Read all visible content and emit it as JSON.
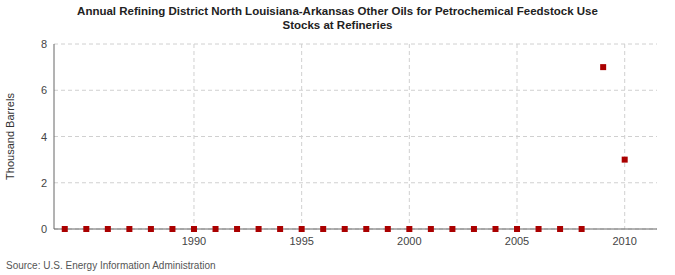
{
  "chart_data": {
    "type": "scatter",
    "title": "Annual Refining District North Louisiana-Arkansas Other Oils for Petrochemical Feedstock Use\nStocks at Refineries",
    "ylabel": "Thousand Barrels",
    "annotations": [
      "Source: U.S. Energy Information Administration"
    ],
    "x": [
      1984,
      1985,
      1986,
      1987,
      1988,
      1989,
      1990,
      1991,
      1992,
      1993,
      1994,
      1995,
      1996,
      1997,
      1998,
      1999,
      2000,
      2001,
      2002,
      2003,
      2004,
      2005,
      2006,
      2007,
      2008,
      2009,
      2010
    ],
    "values": [
      0,
      0,
      0,
      0,
      0,
      0,
      0,
      0,
      0,
      0,
      0,
      0,
      0,
      0,
      0,
      0,
      0,
      0,
      0,
      0,
      0,
      0,
      0,
      0,
      0,
      7,
      3
    ],
    "color": "#aa0000",
    "marker": "square",
    "xlim": [
      1983.5,
      2011.5
    ],
    "ylim": [
      0,
      8
    ],
    "xticks": [
      1990,
      1995,
      2000,
      2005,
      2010
    ],
    "yticks": [
      0,
      2,
      4,
      6,
      8
    ],
    "grid": true
  }
}
